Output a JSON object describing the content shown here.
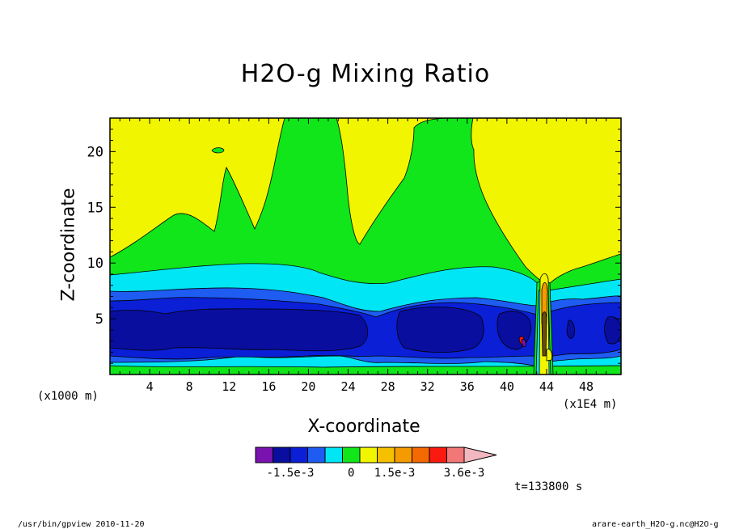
{
  "chart_data": {
    "type": "heatmap",
    "title": "H2O-g Mixing Ratio",
    "xlabel": "X-coordinate",
    "ylabel": "Z-coordinate",
    "x_unit_left": "(x1000 m)",
    "x_unit_right": "(x1E4 m)",
    "x_ticks": [
      "4",
      "8",
      "12",
      "16",
      "20",
      "24",
      "28",
      "32",
      "36",
      "40",
      "44",
      "48"
    ],
    "y_ticks": [
      "5",
      "10",
      "15",
      "20"
    ],
    "xlim": [
      0,
      51.5
    ],
    "ylim": [
      0,
      23
    ],
    "colorbar": {
      "colors": [
        "#7a12b0",
        "#0a0e9e",
        "#0a1fd6",
        "#1e5cf2",
        "#00e6f5",
        "#10e61a",
        "#f2f500",
        "#f5c000",
        "#f59a00",
        "#f56a00",
        "#fa1a10",
        "#f27878",
        "#f2b8c0"
      ],
      "labels": [
        "-1.5e-3",
        "0",
        "1.5e-3",
        "3.6e-3"
      ]
    },
    "time_label": "t=133800 s",
    "footer_left": "/usr/bin/gpview  2010-11-20",
    "footer_right": "arare-earth_H2O-g.nc@H2O-g"
  }
}
